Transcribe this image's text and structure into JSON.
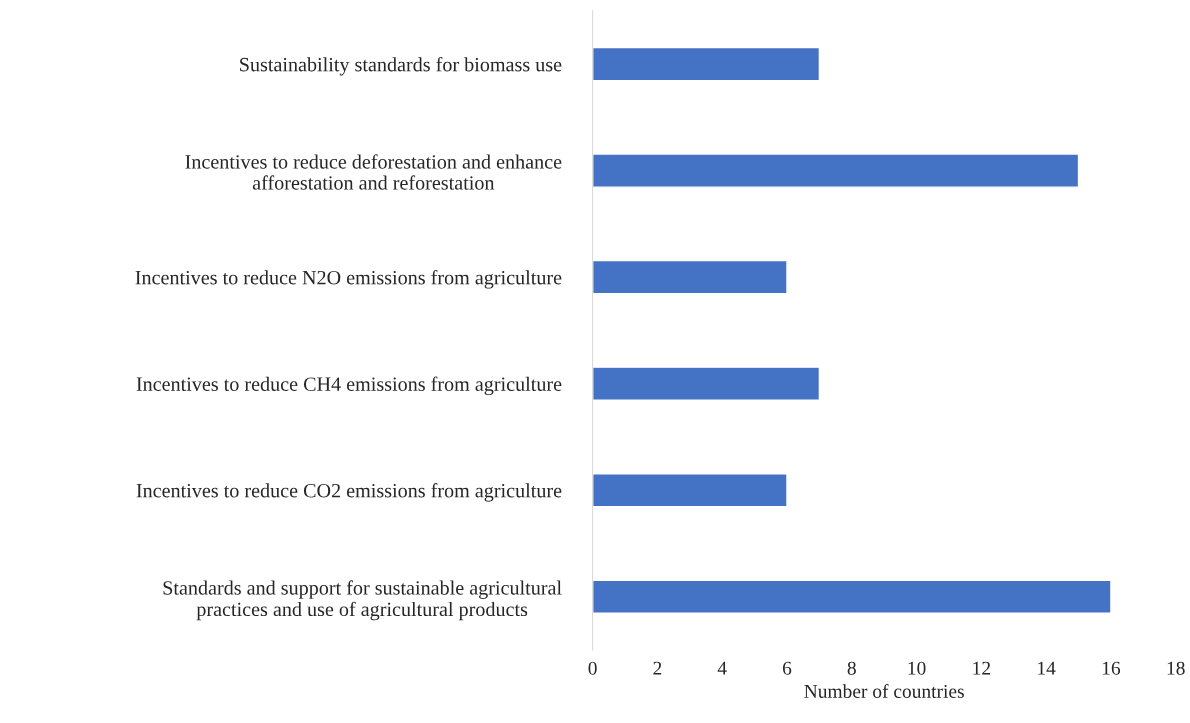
{
  "chart_data": {
    "type": "bar",
    "orientation": "horizontal",
    "xlabel": "Number of countries",
    "categories": [
      "Sustainability standards for biomass use",
      "Incentives to reduce deforestation and enhance\nafforestation and reforestation",
      "Incentives to reduce N2O emissions from agriculture",
      "Incentives to reduce CH4 emissions from agriculture",
      "Incentives to reduce CO2 emissions from agriculture",
      "Standards and support for sustainable agricultural\npractices and use of agricultural products"
    ],
    "values": [
      7,
      15,
      6,
      7,
      6,
      16
    ],
    "color": "#4472c4",
    "xlim": [
      0,
      18
    ],
    "xticks": [
      0,
      2,
      4,
      6,
      8,
      10,
      12,
      14,
      16,
      18
    ],
    "grid": false,
    "legend": false
  }
}
